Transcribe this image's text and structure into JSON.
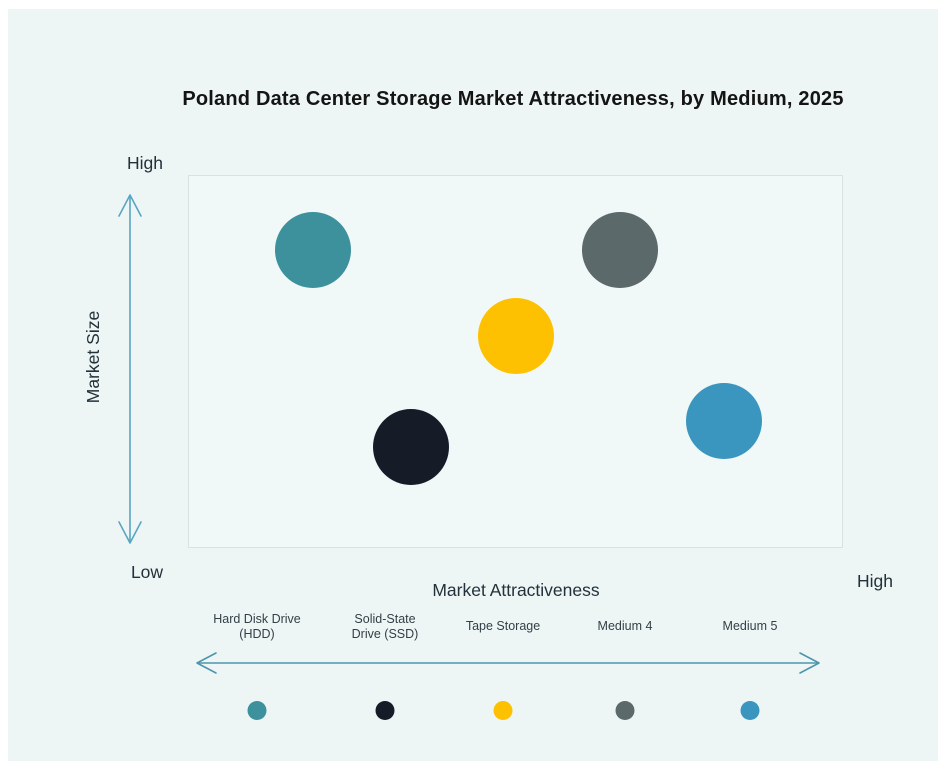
{
  "title": "Poland Data Center Storage Market Attractiveness,  by Medium, 2025",
  "axes": {
    "y_label": "Market Size",
    "y_high_label": "High",
    "y_low_label": "Low",
    "x_label": "Market Attractiveness",
    "x_high_label": "High"
  },
  "colors": {
    "page_background": "#ffffff",
    "panel_background": "#edf6f5",
    "plot_fill": "#f1f8f8",
    "plot_border": "#d8e2e0",
    "axis_arrow": "#5aa5c2",
    "legend_arrow": "#4d96ad",
    "title_text": "#141414",
    "axis_text": "#22313a",
    "legend_text": "#333f47"
  },
  "chart_data": {
    "type": "scatter",
    "subtype": "bubble",
    "title": "Poland Data Center Storage Market Attractiveness, by Medium, 2025",
    "xlabel": "Market Attractiveness",
    "ylabel": "Market Size",
    "x_axis_endpoints": {
      "high": "High"
    },
    "y_axis_endpoints": {
      "high": "High",
      "low": "Low"
    },
    "x_range": [
      0,
      1
    ],
    "y_range": [
      0,
      1
    ],
    "grid": false,
    "legend_position": "bottom",
    "bubble_radius_px": 38,
    "points": [
      {
        "label": "Hard Disk Drive (HDD)",
        "x_attractiveness": 0.19,
        "y_market_size": 0.8,
        "color": "#3d919c"
      },
      {
        "label": "Solid-State Drive (SSD)",
        "x_attractiveness": 0.34,
        "y_market_size": 0.27,
        "color": "#151c28"
      },
      {
        "label": "Tape Storage",
        "x_attractiveness": 0.5,
        "y_market_size": 0.57,
        "color": "#fec101"
      },
      {
        "label": "Medium 4",
        "x_attractiveness": 0.66,
        "y_market_size": 0.8,
        "color": "#5c696b"
      },
      {
        "label": "Medium 5",
        "x_attractiveness": 0.82,
        "y_market_size": 0.34,
        "color": "#3a96be"
      }
    ]
  }
}
